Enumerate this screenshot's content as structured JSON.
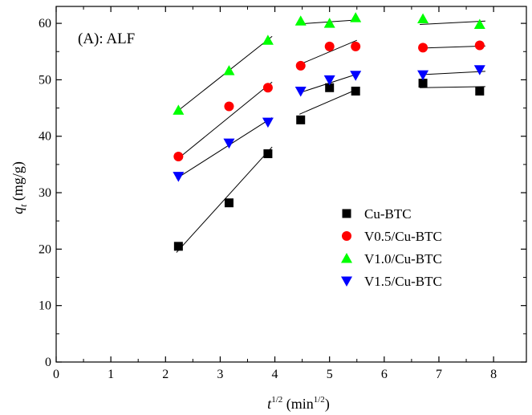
{
  "chart_data": {
    "type": "scatter",
    "annotation": "(A): ALF",
    "xlabel": {
      "base": "t",
      "base_sup": "1/2",
      "unit_open": " (min",
      "unit_sup": "1/2",
      "unit_close": ")"
    },
    "ylabel": {
      "base": "q",
      "base_sub": "t",
      "unit": " (mg/g)"
    },
    "xlim": [
      0,
      8.6
    ],
    "ylim": [
      0,
      63
    ],
    "xticks": [
      "0",
      "1",
      "2",
      "3",
      "4",
      "5",
      "6",
      "7",
      "8"
    ],
    "yticks": [
      "0",
      "10",
      "20",
      "30",
      "40",
      "50",
      "60"
    ],
    "legend_position": "center-right",
    "series": [
      {
        "name": "Cu-BTC",
        "marker": "square",
        "color": "#000000",
        "points": [
          [
            2.236,
            20.5
          ],
          [
            3.162,
            28.2
          ],
          [
            3.873,
            36.9
          ],
          [
            4.472,
            42.9
          ],
          [
            5.0,
            48.6
          ],
          [
            5.477,
            48.0
          ],
          [
            6.708,
            49.4
          ],
          [
            7.746,
            48.0
          ]
        ],
        "fit_lines": [
          [
            [
              2.2,
              19.4
            ],
            [
              3.95,
              38.1
            ]
          ],
          [
            [
              4.45,
              43.9
            ],
            [
              5.5,
              48.3
            ]
          ],
          [
            [
              6.65,
              48.6
            ],
            [
              7.85,
              48.8
            ]
          ]
        ]
      },
      {
        "name": "V0.5/Cu-BTC",
        "marker": "circle",
        "color": "#ff0000",
        "points": [
          [
            2.236,
            36.4
          ],
          [
            3.162,
            45.3
          ],
          [
            3.873,
            48.6
          ],
          [
            4.472,
            52.5
          ],
          [
            5.0,
            55.9
          ],
          [
            5.477,
            55.9
          ],
          [
            6.708,
            55.7
          ],
          [
            7.746,
            56.1
          ]
        ],
        "fit_lines": [
          [
            [
              2.2,
              35.8
            ],
            [
              3.95,
              49.6
            ]
          ],
          [
            [
              4.45,
              52.7
            ],
            [
              5.5,
              57.0
            ]
          ],
          [
            [
              6.65,
              55.6
            ],
            [
              7.85,
              56.0
            ]
          ]
        ]
      },
      {
        "name": "V1.0/Cu-BTC",
        "marker": "triangle-up",
        "color": "#00ff00",
        "points": [
          [
            2.236,
            44.6
          ],
          [
            3.162,
            51.6
          ],
          [
            3.873,
            57.0
          ],
          [
            4.472,
            60.4
          ],
          [
            5.0,
            60.0
          ],
          [
            5.477,
            61.0
          ],
          [
            6.708,
            60.8
          ],
          [
            7.746,
            59.8
          ]
        ],
        "fit_lines": [
          [
            [
              2.2,
              44.3
            ],
            [
              3.95,
              57.7
            ]
          ],
          [
            [
              4.45,
              59.9
            ],
            [
              5.5,
              60.6
            ]
          ],
          [
            [
              6.65,
              59.8
            ],
            [
              7.85,
              60.4
            ]
          ]
        ]
      },
      {
        "name": "V1.5/Cu-BTC",
        "marker": "triangle-down",
        "color": "#0000ff",
        "points": [
          [
            2.236,
            32.9
          ],
          [
            3.162,
            38.8
          ],
          [
            3.873,
            42.5
          ],
          [
            4.472,
            48.0
          ],
          [
            5.0,
            50.0
          ],
          [
            5.477,
            50.8
          ],
          [
            6.708,
            50.9
          ],
          [
            7.746,
            51.8
          ]
        ],
        "fit_lines": [
          [
            [
              2.2,
              32.5
            ],
            [
              3.95,
              43.3
            ]
          ],
          [
            [
              4.45,
              47.7
            ],
            [
              5.5,
              51.0
            ]
          ],
          [
            [
              6.65,
              50.9
            ],
            [
              7.85,
              51.5
            ]
          ]
        ]
      }
    ]
  }
}
